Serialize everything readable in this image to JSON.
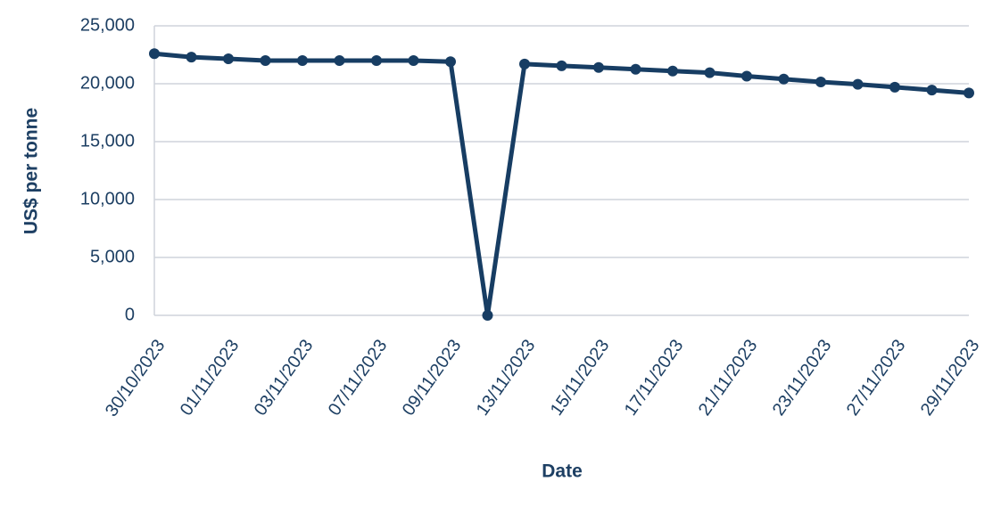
{
  "chart_data": {
    "type": "line",
    "x_label": "Date",
    "y_label": "US$ per tonne",
    "categories": [
      "30/10/2023",
      null,
      "01/11/2023",
      null,
      "03/11/2023",
      null,
      "07/11/2023",
      null,
      "09/11/2023",
      null,
      "13/11/2023",
      null,
      "15/11/2023",
      null,
      "17/11/2023",
      null,
      "21/11/2023",
      null,
      "23/11/2023",
      null,
      "27/11/2023",
      null,
      "29/11/2023"
    ],
    "values": [
      22600,
      22300,
      22150,
      22000,
      22000,
      22000,
      22000,
      22000,
      21900,
      0,
      21700,
      21550,
      21400,
      21250,
      21100,
      20950,
      20650,
      20400,
      20150,
      19950,
      19700,
      19450,
      19200
    ],
    "color": "#173d63",
    "ylim": [
      0,
      25000
    ],
    "yticks": [
      0,
      {
        "value": 5000,
        "label": "5,000"
      },
      {
        "value": 10000,
        "label": "10,000"
      },
      {
        "value": 15000,
        "label": "15,000"
      },
      {
        "value": 20000,
        "label": "20,000"
      },
      {
        "value": 25000,
        "label": "25,000"
      }
    ],
    "grid": true
  }
}
